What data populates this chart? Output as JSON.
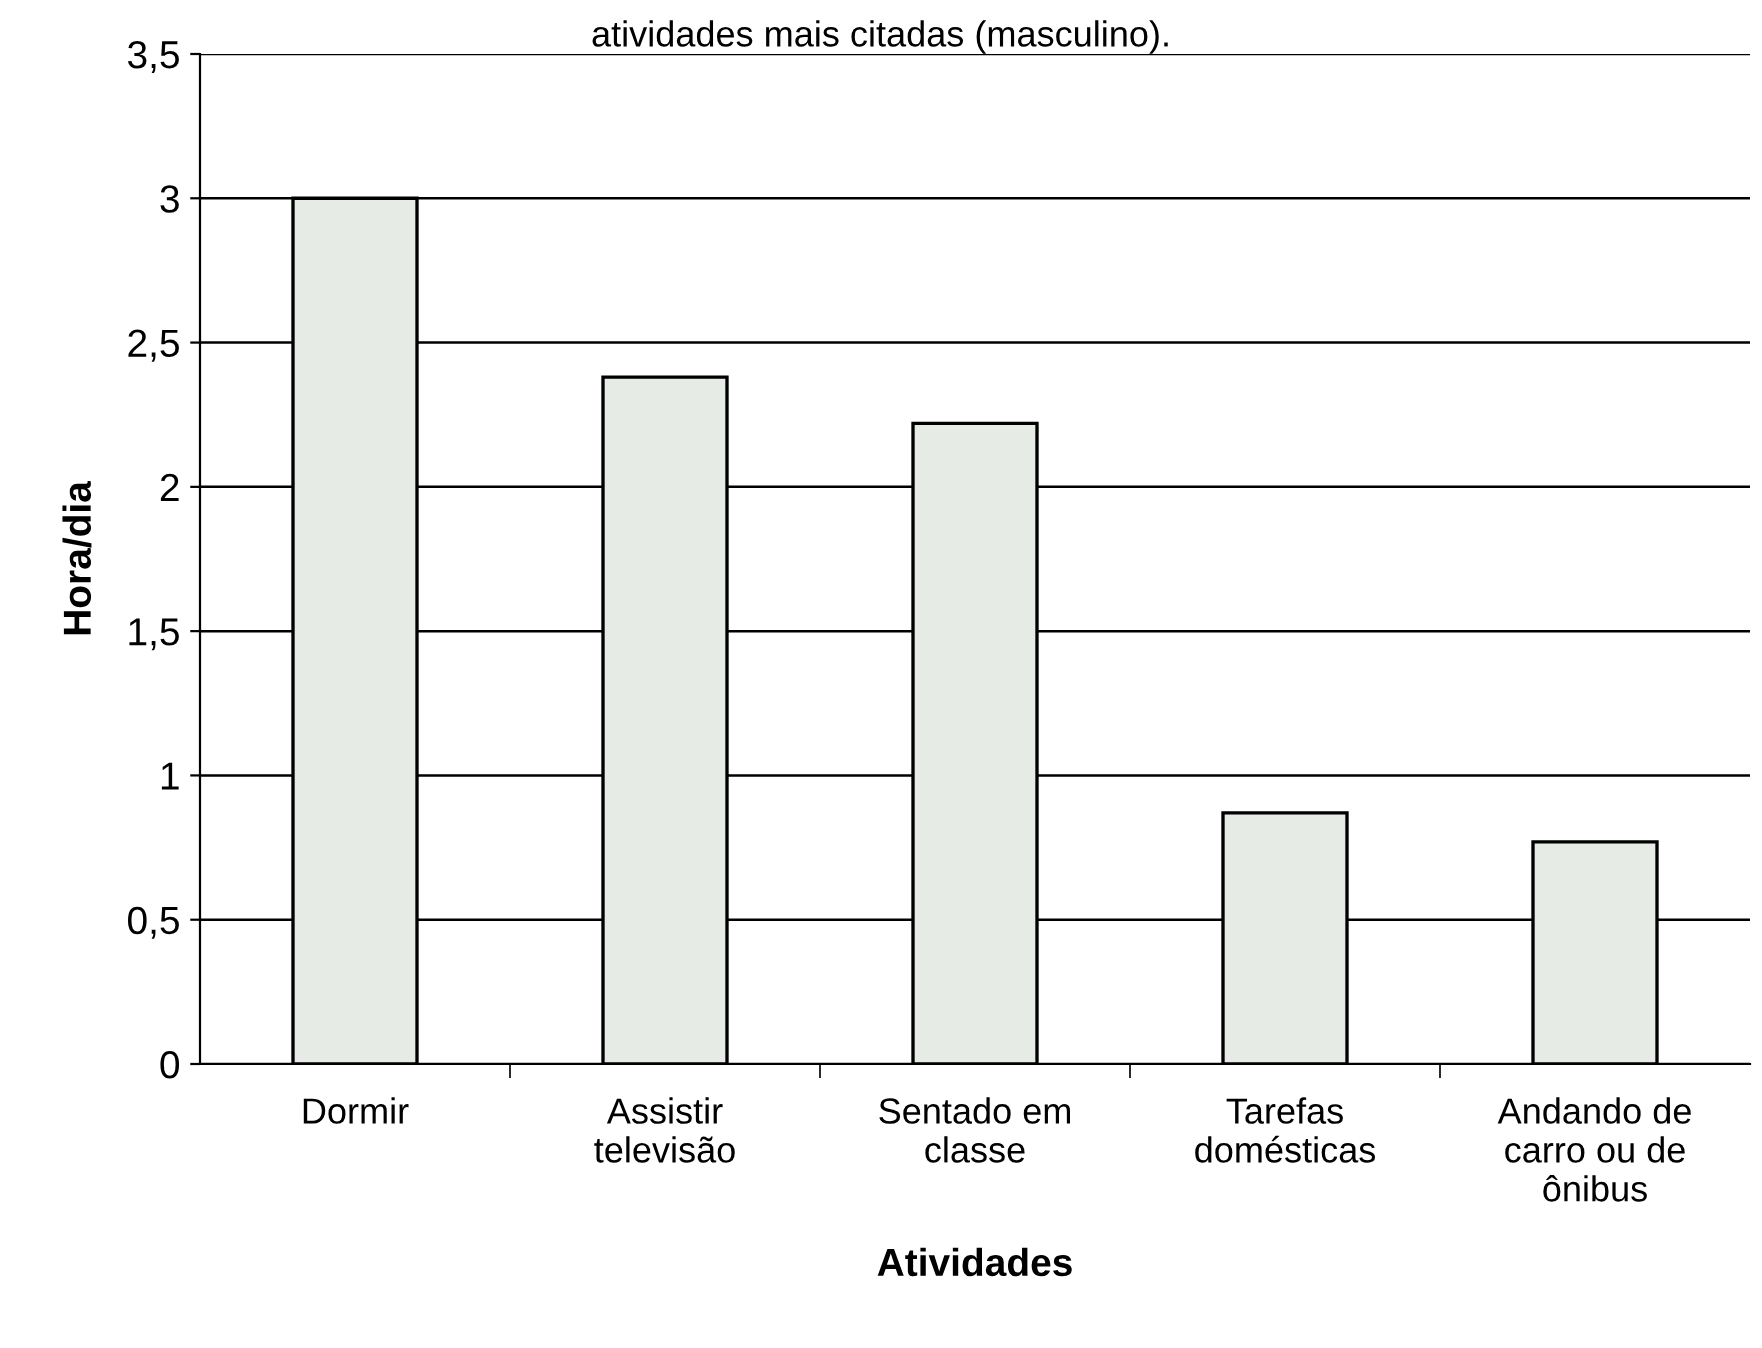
{
  "chart_data": {
    "type": "bar",
    "title": "atividades mais citadas (masculino).",
    "xlabel": "Atividades",
    "ylabel": "Hora/dia",
    "categories": [
      "Dormir",
      "Assistir\ntelevisão",
      "Sentado em\nclasse",
      "Tarefas\ndomésticas",
      "Andando de\ncarro ou de\nônibus"
    ],
    "values": [
      3.0,
      2.38,
      2.22,
      0.87,
      0.77
    ],
    "color": "#e6ebe6",
    "ylim": [
      0,
      3.5
    ],
    "yticks": [
      {
        "value": 0,
        "label": "0"
      },
      {
        "value": 0.5,
        "label": "0,5"
      },
      {
        "value": 1,
        "label": "1"
      },
      {
        "value": 1.5,
        "label": "1,5"
      },
      {
        "value": 2,
        "label": "2"
      },
      {
        "value": 2.5,
        "label": "2,5"
      },
      {
        "value": 3,
        "label": "3"
      },
      {
        "value": 3.5,
        "label": "3,5"
      }
    ],
    "grid": "y"
  }
}
